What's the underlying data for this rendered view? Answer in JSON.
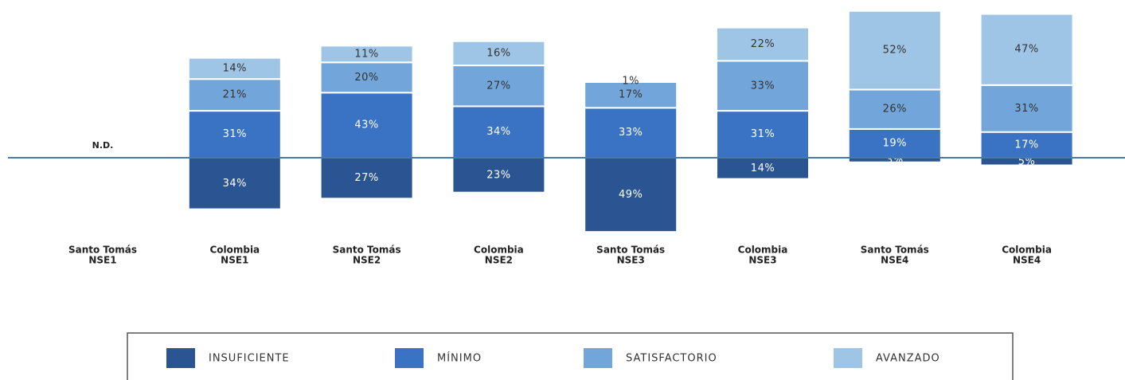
{
  "chart_data": {
    "type": "diverging-stacked-bar",
    "categories": [
      [
        "Santo Tomás",
        "NSE1"
      ],
      [
        "Colombia",
        "NSE1"
      ],
      [
        "Santo Tomás",
        "NSE2"
      ],
      [
        "Colombia",
        "NSE2"
      ],
      [
        "Santo Tomás",
        "NSE3"
      ],
      [
        "Colombia",
        "NSE3"
      ],
      [
        "Santo Tomás",
        "NSE4"
      ],
      [
        "Colombia",
        "NSE4"
      ]
    ],
    "annotation": "N.D.",
    "series": [
      {
        "name": "INSUFICIENTE",
        "color": "#2b5592",
        "values": [
          null,
          34,
          27,
          23,
          49,
          14,
          3,
          5
        ],
        "value_labels": [
          null,
          "34%",
          "27%",
          "23%",
          "49%",
          "14%",
          "3%",
          "5%"
        ]
      },
      {
        "name": "MÍNIMO",
        "color": "#3a72c4",
        "values": [
          null,
          31,
          43,
          34,
          33,
          31,
          19,
          17
        ],
        "value_labels": [
          null,
          "31%",
          "43%",
          "34%",
          "33%",
          "31%",
          "19%",
          "17%"
        ]
      },
      {
        "name": "SATISFACTORIO",
        "color": "#72a5d9",
        "values": [
          null,
          21,
          20,
          27,
          17,
          33,
          26,
          31
        ],
        "value_labels": [
          null,
          "21%",
          "20%",
          "27%",
          "17%",
          "33%",
          "26%",
          "31%"
        ]
      },
      {
        "name": "AVANZADO",
        "color": "#9fc5e6",
        "values": [
          null,
          14,
          11,
          16,
          1,
          22,
          52,
          47
        ],
        "value_labels": [
          null,
          "14%",
          "11%",
          "16%",
          "1%",
          "22%",
          "52%",
          "47%"
        ]
      }
    ]
  }
}
